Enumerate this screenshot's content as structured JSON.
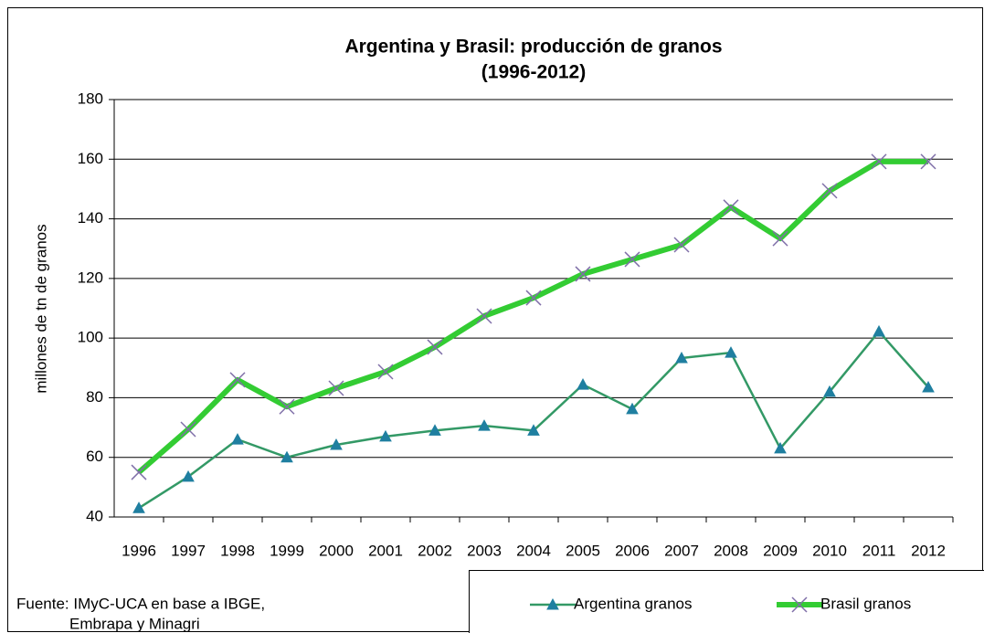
{
  "chart_data": {
    "type": "line",
    "title": [
      "Argentina y Brasil:  producción de granos",
      "(1996-2012)"
    ],
    "ylabel": "millones de tn de granos",
    "source": [
      "Fuente:   IMyC-UCA  en base a IBGE,",
      "Embrapa y Minagri"
    ],
    "categories": [
      "1996",
      "1997",
      "1998",
      "1999",
      "2000",
      "2001",
      "2002",
      "2003",
      "2004",
      "2005",
      "2006",
      "2007",
      "2008",
      "2009",
      "2010",
      "2011",
      "2012"
    ],
    "series": [
      {
        "name": "Argentina granos",
        "color": "#339966",
        "marker": "triangle",
        "marker_color": "#1f7fa0",
        "values": [
          43,
          53.5,
          66,
          60,
          64.2,
          67,
          69,
          70.6,
          69,
          84.4,
          76.2,
          93.3,
          95.1,
          63,
          82,
          102.2,
          83.5
        ]
      },
      {
        "name": "Brasil granos",
        "color": "#33cc33",
        "marker": "x",
        "marker_color": "#7f6fa8",
        "values": [
          55,
          69.4,
          86,
          77,
          83.2,
          88.7,
          97,
          107.4,
          113.5,
          121.5,
          126.4,
          131.3,
          143.9,
          133.4,
          149.4,
          159.2,
          159.2
        ]
      }
    ],
    "ylim": [
      40,
      180
    ],
    "yticks": [
      40,
      60,
      80,
      100,
      120,
      140,
      160,
      180
    ],
    "grid": true,
    "legend": "bottom-right"
  }
}
